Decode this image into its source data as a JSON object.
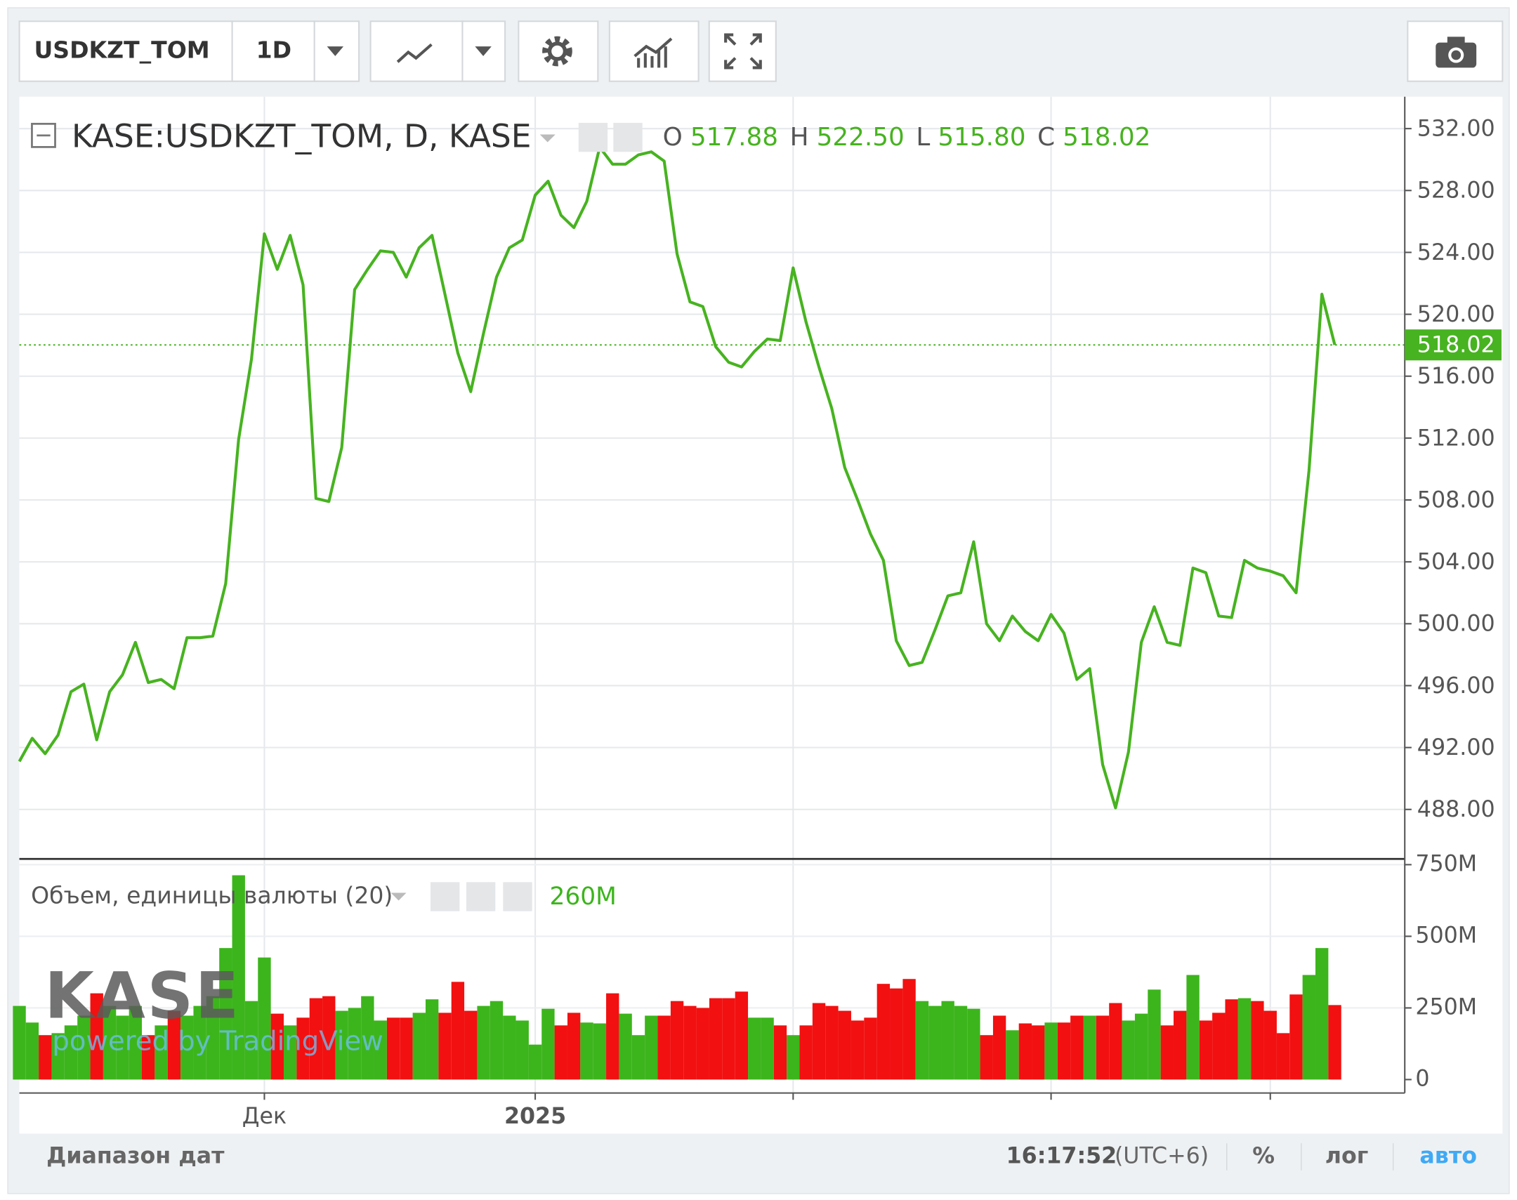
{
  "toolbar": {
    "symbol": "USDKZT_TOM",
    "interval": "1D"
  },
  "watermark": {
    "logo": "KASE",
    "credit": "powered by TradingView"
  },
  "chart_data": [
    {
      "type": "line",
      "title": "KASE:USDKZT_TOM, D, KASE",
      "ohlc": [
        {
          "key": "O",
          "value": "517.88"
        },
        {
          "key": "H",
          "value": "522.50"
        },
        {
          "key": "L",
          "value": "515.80"
        },
        {
          "key": "C",
          "value": "518.02"
        }
      ],
      "color": "#47b320",
      "categories": [
        null,
        null,
        null,
        null,
        null,
        null,
        null,
        null,
        null,
        null,
        null,
        null,
        null,
        null,
        null,
        null,
        null,
        null,
        null,
        "Дек",
        null,
        null,
        null,
        null,
        null,
        null,
        null,
        null,
        null,
        null,
        null,
        null,
        null,
        null,
        null,
        null,
        null,
        null,
        null,
        null,
        "2025",
        null,
        null,
        null,
        null,
        null,
        null,
        null,
        null,
        null,
        null,
        null,
        null,
        null,
        null,
        null,
        null,
        null,
        null,
        null,
        null,
        null,
        null,
        null,
        null,
        null,
        null,
        null,
        null,
        null,
        null,
        null,
        null,
        null,
        null,
        null,
        null,
        null,
        null,
        null,
        null,
        null,
        null,
        null,
        null,
        null,
        null,
        null,
        null,
        null,
        null,
        null,
        null,
        null,
        null,
        null,
        null,
        null,
        null,
        null,
        null,
        null,
        null
      ],
      "xticks": [
        19,
        40,
        60,
        80,
        97
      ],
      "values": [
        491.1,
        492.6,
        491.6,
        492.8,
        495.6,
        496.1,
        492.5,
        495.6,
        496.7,
        498.8,
        496.2,
        496.4,
        495.8,
        499.1,
        499.1,
        499.2,
        502.6,
        511.9,
        517.1,
        525.2,
        522.9,
        525.1,
        521.9,
        508.1,
        507.9,
        511.4,
        521.6,
        522.9,
        524.1,
        524.0,
        522.4,
        524.3,
        525.1,
        521.3,
        517.5,
        515.0,
        518.8,
        522.4,
        524.3,
        524.8,
        527.7,
        528.6,
        526.4,
        525.6,
        527.3,
        530.8,
        529.7,
        529.7,
        530.3,
        530.5,
        529.9,
        523.9,
        520.8,
        520.5,
        517.9,
        516.9,
        516.6,
        517.6,
        518.4,
        518.3,
        523.0,
        519.5,
        516.6,
        513.9,
        510.1,
        508.0,
        505.8,
        504.1,
        498.9,
        497.3,
        497.5,
        499.6,
        501.8,
        502.0,
        505.3,
        500.0,
        498.9,
        500.5,
        499.5,
        498.9,
        500.6,
        499.4,
        496.4,
        497.1,
        490.9,
        488.1,
        491.7,
        498.8,
        501.1,
        498.8,
        498.6,
        503.6,
        503.3,
        500.5,
        500.4,
        504.1,
        503.6,
        503.4,
        503.1,
        502.0,
        509.9,
        521.3,
        518.02
      ],
      "last_value": 518.02,
      "ylim": [
        484.8,
        534.06
      ],
      "yticks": [
        {
          "value": 488,
          "label": "488.00"
        },
        {
          "value": 492,
          "label": "492.00"
        },
        {
          "value": 496,
          "label": "496.00"
        },
        {
          "value": 500,
          "label": "500.00"
        },
        {
          "value": 504,
          "label": "504.00"
        },
        {
          "value": 508,
          "label": "508.00"
        },
        {
          "value": 512,
          "label": "512.00"
        },
        {
          "value": 516,
          "label": "516.00"
        },
        {
          "value": 520,
          "label": "520.00"
        },
        {
          "value": 524,
          "label": "524.00"
        },
        {
          "value": 528,
          "label": "528.00"
        },
        {
          "value": 532,
          "label": "532.00"
        }
      ],
      "grid": true
    },
    {
      "type": "bar",
      "title": "Объем, единицы валюты (20)",
      "last_label": "260M",
      "up_color": "#3cb51c",
      "down_color": "#f21010",
      "values": [
        257000000,
        199000000,
        155000000,
        162000000,
        189000000,
        223000000,
        301000000,
        257000000,
        223000000,
        257000000,
        155000000,
        189000000,
        240000000,
        223000000,
        257000000,
        291000000,
        459000000,
        713000000,
        274000000,
        426000000,
        230000000,
        189000000,
        216000000,
        284000000,
        291000000,
        240000000,
        250000000,
        291000000,
        206000000,
        216000000,
        216000000,
        233000000,
        280000000,
        233000000,
        341000000,
        240000000,
        257000000,
        274000000,
        223000000,
        206000000,
        122000000,
        247000000,
        189000000,
        233000000,
        199000000,
        196000000,
        301000000,
        230000000,
        155000000,
        223000000,
        223000000,
        274000000,
        257000000,
        250000000,
        284000000,
        284000000,
        307000000,
        216000000,
        216000000,
        189000000,
        155000000,
        189000000,
        267000000,
        257000000,
        240000000,
        206000000,
        216000000,
        334000000,
        318000000,
        351000000,
        274000000,
        257000000,
        274000000,
        257000000,
        247000000,
        155000000,
        223000000,
        172000000,
        196000000,
        189000000,
        199000000,
        199000000,
        223000000,
        223000000,
        223000000,
        267000000,
        206000000,
        230000000,
        314000000,
        189000000,
        240000000,
        365000000,
        206000000,
        233000000,
        280000000,
        284000000,
        274000000,
        240000000,
        162000000,
        297000000,
        365000000,
        459000000,
        260000000
      ],
      "ylim": [
        -47000000,
        770000000
      ],
      "yticks": [
        0,
        {
          "value": 250000000,
          "label": "250M"
        },
        {
          "value": 500000000,
          "label": "500M"
        },
        {
          "value": 750000000,
          "label": "750M"
        }
      ],
      "grid": true
    }
  ],
  "footer": {
    "range": "Диапазон дат",
    "time": "16:17:52",
    "timezone": "(UTC+6)",
    "percent": "%",
    "log": "лог",
    "auto": "авто"
  }
}
